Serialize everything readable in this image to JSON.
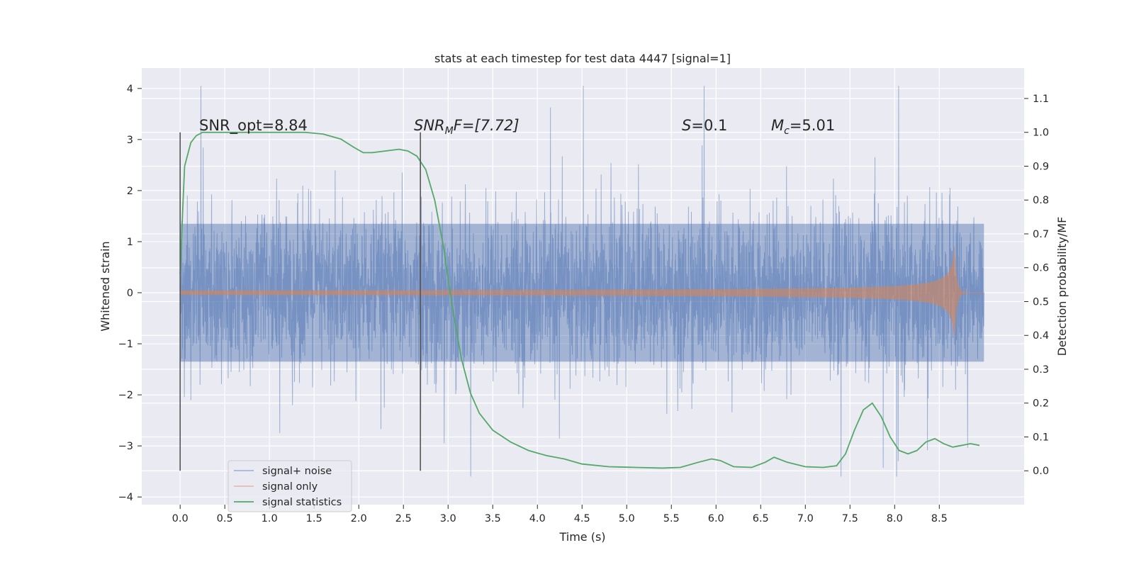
{
  "chart_data": {
    "type": "line",
    "title": "stats at each timestep for test data 4447 [signal=1]",
    "xlabel": "Time (s)",
    "ylabel": "Whitened strain",
    "y2label": "Detection probability/MF",
    "xlim": [
      -0.43,
      9.45
    ],
    "ylim": [
      -4.15,
      4.4
    ],
    "y2lim": [
      -0.1,
      1.19
    ],
    "x_ticks": [
      0.0,
      0.5,
      1.0,
      1.5,
      2.0,
      2.5,
      3.0,
      3.5,
      4.0,
      4.5,
      5.0,
      5.5,
      6.0,
      6.5,
      7.0,
      7.5,
      8.0,
      8.5
    ],
    "x_tick_labels": [
      "0.0",
      "0.5",
      "1.0",
      "1.5",
      "2.0",
      "2.5",
      "3.0",
      "3.5",
      "4.0",
      "4.5",
      "5.0",
      "5.5",
      "6.0",
      "6.5",
      "7.0",
      "7.5",
      "8.0",
      "8.5"
    ],
    "y_ticks": [
      -4,
      -3,
      -2,
      -1,
      0,
      1,
      2,
      3,
      4
    ],
    "y_tick_labels": [
      "−4",
      "−3",
      "−2",
      "−1",
      "0",
      "1",
      "2",
      "3",
      "4"
    ],
    "y2_ticks": [
      0.0,
      0.1,
      0.2,
      0.3,
      0.4,
      0.5,
      0.6,
      0.7,
      0.8,
      0.9,
      1.0,
      1.1
    ],
    "y2_tick_labels": [
      "0.0",
      "0.1",
      "0.2",
      "0.3",
      "0.4",
      "0.5",
      "0.6",
      "0.7",
      "0.8",
      "0.9",
      "1.0",
      "1.1"
    ],
    "grid": true,
    "legend_position": "lower-left",
    "annotations": {
      "snr_opt": "SNR_opt=8.84",
      "snr_mf_main": "SNR",
      "snr_mf_sub": "M",
      "snr_mf_rest": "F=[7.72]",
      "s_main": "S",
      "s_rest": "=0.1",
      "mc_main": "M",
      "mc_sub": "c",
      "mc_rest": "=5.01"
    },
    "vlines": [
      {
        "x": 0.0,
        "y2_from": 0.0,
        "y2_to": 1.0
      },
      {
        "x": 2.69,
        "y2_from": 0.0,
        "y2_to": 1.0
      }
    ],
    "series": [
      {
        "name": "signal+ noise",
        "color": "#4c72b0",
        "axis": "left",
        "time_range": [
          0.0,
          9.0
        ],
        "typical_abs": 1.35,
        "spike_max": [
          -3.6,
          4.05
        ],
        "note": "whitened noise trace, roughly Gaussian with unit variance"
      },
      {
        "name": "signal only",
        "color": "#dd8452",
        "axis": "left",
        "chirp": {
          "t_start": 0.0,
          "t_merger": 8.67,
          "t_end": 9.0,
          "amp_start": 0.02,
          "amp_peak": 0.95
        }
      },
      {
        "name": "signal statistics",
        "color": "#55a868",
        "axis": "right",
        "x": [
          0.0,
          0.03,
          0.05,
          0.08,
          0.12,
          0.18,
          0.25,
          0.4,
          0.6,
          0.8,
          1.0,
          1.2,
          1.4,
          1.6,
          1.8,
          1.95,
          2.05,
          2.15,
          2.3,
          2.45,
          2.55,
          2.65,
          2.75,
          2.85,
          2.95,
          3.05,
          3.15,
          3.25,
          3.35,
          3.5,
          3.7,
          3.9,
          4.1,
          4.3,
          4.5,
          4.8,
          5.1,
          5.4,
          5.6,
          5.8,
          5.95,
          6.05,
          6.2,
          6.4,
          6.55,
          6.65,
          6.8,
          7.0,
          7.2,
          7.35,
          7.45,
          7.55,
          7.65,
          7.75,
          7.85,
          7.95,
          8.05,
          8.15,
          8.25,
          8.35,
          8.45,
          8.55,
          8.65,
          8.75,
          8.85,
          8.95
        ],
        "values": [
          0.58,
          0.78,
          0.9,
          0.93,
          0.97,
          0.99,
          1.0,
          1.0,
          1.0,
          1.0,
          1.0,
          1.0,
          1.0,
          0.995,
          0.98,
          0.955,
          0.94,
          0.94,
          0.945,
          0.95,
          0.945,
          0.93,
          0.89,
          0.8,
          0.66,
          0.48,
          0.33,
          0.23,
          0.17,
          0.12,
          0.085,
          0.06,
          0.045,
          0.035,
          0.02,
          0.012,
          0.01,
          0.008,
          0.01,
          0.025,
          0.035,
          0.03,
          0.012,
          0.01,
          0.025,
          0.04,
          0.025,
          0.012,
          0.01,
          0.015,
          0.05,
          0.12,
          0.18,
          0.2,
          0.16,
          0.1,
          0.06,
          0.05,
          0.06,
          0.085,
          0.095,
          0.08,
          0.07,
          0.075,
          0.08,
          0.075
        ]
      }
    ]
  }
}
